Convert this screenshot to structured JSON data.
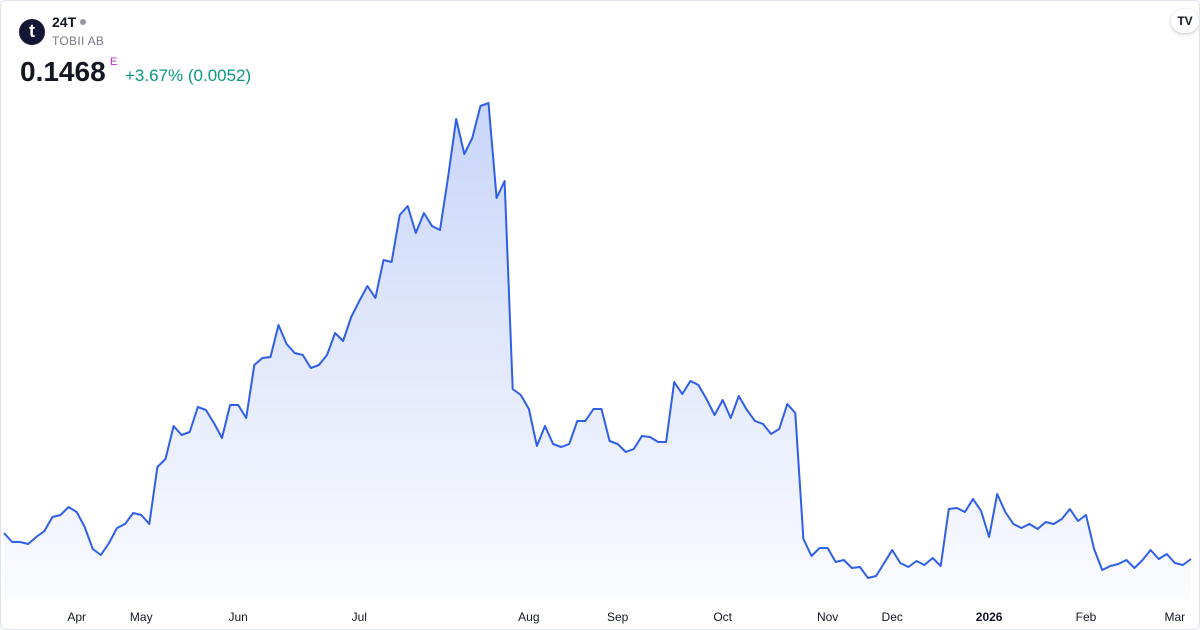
{
  "header": {
    "symbol": "24T",
    "name": "TOBII AB",
    "price": "0.1468",
    "flag": "E",
    "change": "+3.67% (0.0052)"
  },
  "chart_data": {
    "type": "area",
    "color": "#2f5fe8",
    "ylim": [
      0.1048,
      0.7048
    ],
    "categories": [
      null,
      null,
      null,
      null,
      null,
      null,
      null,
      null,
      null,
      "Apr",
      null,
      null,
      null,
      null,
      null,
      null,
      null,
      "May",
      null,
      null,
      null,
      null,
      null,
      null,
      null,
      null,
      null,
      null,
      null,
      "Jun",
      null,
      null,
      null,
      null,
      null,
      null,
      null,
      null,
      null,
      null,
      null,
      null,
      null,
      null,
      "Jul",
      null,
      null,
      null,
      null,
      null,
      null,
      null,
      null,
      null,
      null,
      null,
      null,
      null,
      null,
      null,
      null,
      null,
      null,
      null,
      null,
      "Aug",
      null,
      null,
      null,
      null,
      null,
      null,
      null,
      null,
      null,
      null,
      "Sep",
      null,
      null,
      null,
      null,
      null,
      null,
      null,
      null,
      null,
      null,
      null,
      null,
      "Oct",
      null,
      null,
      null,
      null,
      null,
      null,
      null,
      null,
      null,
      null,
      null,
      null,
      "Nov",
      null,
      null,
      null,
      null,
      null,
      null,
      null,
      "Dec",
      null,
      null,
      null,
      null,
      null,
      null,
      null,
      null,
      null,
      null,
      null,
      "2026",
      null,
      null,
      null,
      null,
      null,
      null,
      null,
      null,
      null,
      null,
      null,
      "Feb",
      null,
      null,
      null,
      null,
      null,
      null,
      null,
      null,
      null,
      null,
      "Mar",
      null,
      null
    ],
    "values": [
      0.1728,
      0.1638,
      0.1638,
      0.1618,
      0.1688,
      0.1748,
      0.1888,
      0.1908,
      0.1988,
      0.1938,
      0.1788,
      0.1568,
      0.1508,
      0.1628,
      0.1778,
      0.1818,
      0.1928,
      0.1908,
      0.1818,
      0.2388,
      0.2468,
      0.2798,
      0.2708,
      0.2738,
      0.2988,
      0.2958,
      0.2828,
      0.2678,
      0.3008,
      0.3008,
      0.2878,
      0.3408,
      0.3478,
      0.3488,
      0.3808,
      0.3618,
      0.3528,
      0.3508,
      0.3378,
      0.3408,
      0.3508,
      0.3728,
      0.3648,
      0.3888,
      0.4048,
      0.4198,
      0.4078,
      0.4458,
      0.4438,
      0.4908,
      0.4998,
      0.4728,
      0.4928,
      0.4798,
      0.4758,
      0.5288,
      0.5868,
      0.5518,
      0.5678,
      0.5998,
      0.6028,
      0.5078,
      0.5248,
      0.3168,
      0.3108,
      0.2968,
      0.2598,
      0.2798,
      0.2618,
      0.2588,
      0.2618,
      0.2848,
      0.2848,
      0.2968,
      0.2968,
      0.2648,
      0.2618,
      0.2538,
      0.2568,
      0.2698,
      0.2688,
      0.2638,
      0.2638,
      0.3238,
      0.3118,
      0.3248,
      0.3208,
      0.3068,
      0.2908,
      0.3058,
      0.2878,
      0.3098,
      0.2958,
      0.2848,
      0.2818,
      0.2718,
      0.2768,
      0.3018,
      0.2928,
      0.1668,
      0.1498,
      0.1578,
      0.1578,
      0.1438,
      0.1458,
      0.1378,
      0.1388,
      0.1278,
      0.1298,
      0.1428,
      0.1558,
      0.1428,
      0.1388,
      0.1448,
      0.1408,
      0.1478,
      0.1398,
      0.1968,
      0.1978,
      0.1938,
      0.2068,
      0.1948,
      0.1688,
      0.2118,
      0.1938,
      0.1818,
      0.1778,
      0.1818,
      0.1768,
      0.1838,
      0.1818,
      0.1868,
      0.1968,
      0.1848,
      0.1908,
      0.1568,
      0.1358,
      0.1398,
      0.1418,
      0.1458,
      0.1378,
      0.1458,
      0.1558,
      0.1468,
      0.1518,
      0.1428,
      0.1408,
      0.1468
    ]
  }
}
